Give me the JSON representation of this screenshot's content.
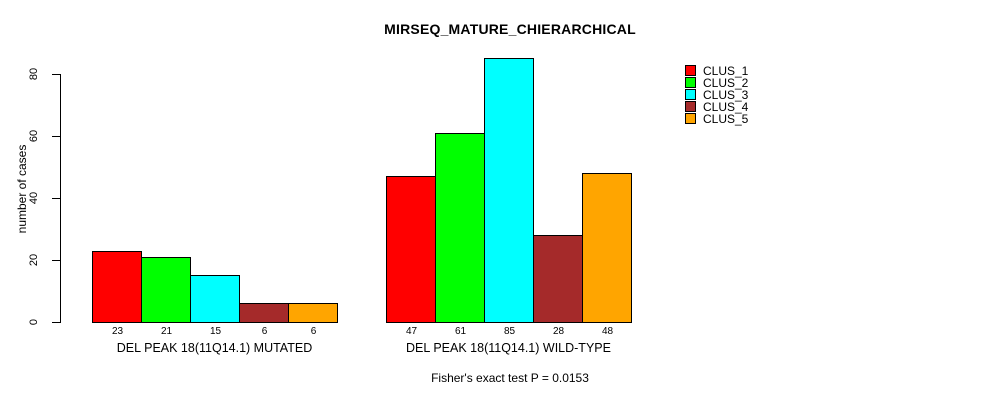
{
  "title": "MIRSEQ_MATURE_CHIERARCHICAL",
  "caption": "Fisher's exact test P = 0.0153",
  "chart_data": {
    "type": "bar",
    "title": "MIRSEQ_MATURE_CHIERARCHICAL",
    "xlabel": "",
    "ylabel": "number of cases",
    "ylim": [
      0,
      85
    ],
    "yticks": [
      0,
      20,
      40,
      60,
      80
    ],
    "grid": false,
    "legend_position": "top-right",
    "bar_value_labels_shown": true,
    "categories": [
      "DEL PEAK 18(11Q14.1) MUTATED",
      "DEL PEAK 18(11Q14.1) WILD-TYPE"
    ],
    "series": [
      {
        "name": "CLUS_1",
        "color": "#ff0000",
        "values": [
          23,
          47
        ]
      },
      {
        "name": "CLUS_2",
        "color": "#00ff00",
        "values": [
          21,
          61
        ]
      },
      {
        "name": "CLUS_3",
        "color": "#00ffff",
        "values": [
          15,
          85
        ]
      },
      {
        "name": "CLUS_4",
        "color": "#a52a2a",
        "values": [
          6,
          28
        ]
      },
      {
        "name": "CLUS_5",
        "color": "#ffa500",
        "values": [
          6,
          48
        ]
      }
    ],
    "annotation": "Fisher's exact test P = 0.0153",
    "colors": {
      "background": "#ffffff",
      "axis": "#000000",
      "text": "#000000"
    }
  }
}
